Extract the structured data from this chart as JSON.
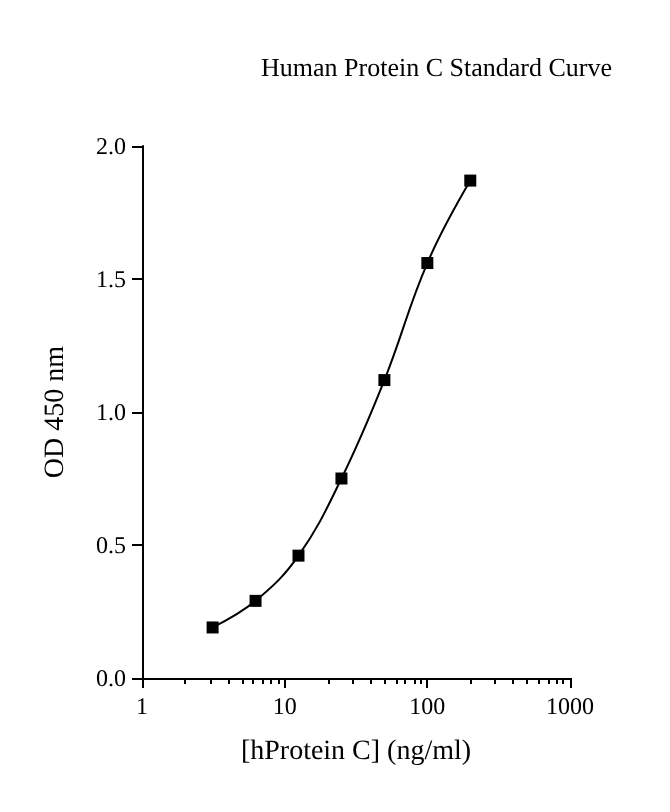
{
  "chart_data": {
    "type": "line",
    "title": "Human Protein C Standard Curve",
    "xlabel": "[hProtein C] (ng/ml)",
    "ylabel": "OD 450 nm",
    "x": [
      3.125,
      6.25,
      12.5,
      25,
      50,
      100,
      200
    ],
    "series": [
      {
        "color": "#000000",
        "values": [
          0.19,
          0.29,
          0.46,
          0.75,
          1.12,
          1.56,
          1.87
        ]
      }
    ],
    "log": "x",
    "xlim": [
      1,
      1000
    ],
    "xticks": [
      1,
      10,
      100,
      1000
    ],
    "ylim": [
      0,
      2
    ],
    "yticks": [
      {
        "value": 0,
        "label": "0.0"
      },
      {
        "value": 0.5,
        "label": "0.5"
      },
      {
        "value": 1,
        "label": "1.0"
      },
      {
        "value": 1.5,
        "label": "1.5"
      },
      {
        "value": 2,
        "label": "2.0"
      }
    ],
    "marker": "square",
    "line_style": "solid",
    "grid": false
  }
}
